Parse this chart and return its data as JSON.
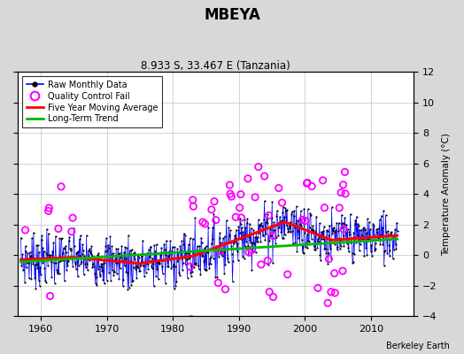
{
  "title": "MBEYA",
  "subtitle": "8.933 S, 33.467 E (Tanzania)",
  "ylabel_right": "Temperature Anomaly (°C)",
  "watermark": "Berkeley Earth",
  "xlim": [
    1956.5,
    2016.5
  ],
  "ylim": [
    -4,
    12
  ],
  "yticks": [
    -4,
    -2,
    0,
    2,
    4,
    6,
    8,
    10,
    12
  ],
  "xticks": [
    1960,
    1970,
    1980,
    1990,
    2000,
    2010
  ],
  "raw_color": "#0000ff",
  "qc_color": "#ff00ff",
  "moving_avg_color": "#ff0000",
  "trend_color": "#00bb00",
  "background_color": "#d8d8d8",
  "plot_bg_color": "#ffffff",
  "grid_color": "#cccccc"
}
